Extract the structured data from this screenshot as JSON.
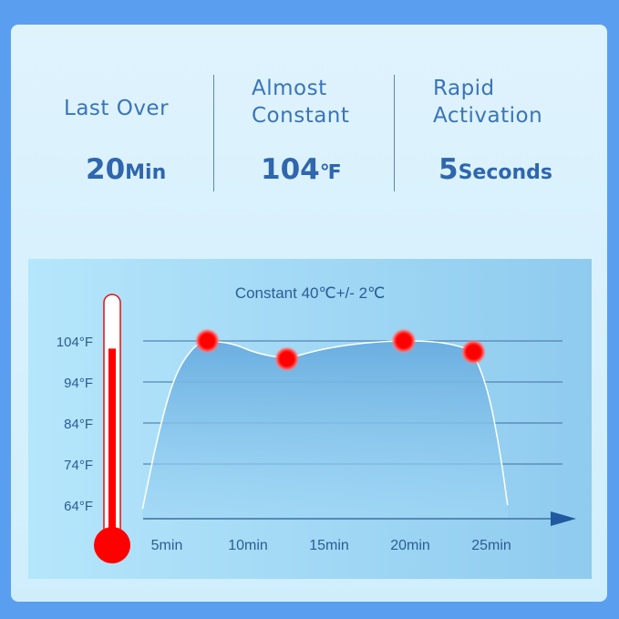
{
  "stats": [
    {
      "label_lines": [
        "Last Over"
      ],
      "value": "20",
      "unit": "Min"
    },
    {
      "label_lines": [
        "Almost",
        "Constant"
      ],
      "value": "104",
      "unit": "℉"
    },
    {
      "label_lines": [
        "Rapid",
        "Activation"
      ],
      "value": "5",
      "unit": "Seconds"
    }
  ],
  "chart_data": {
    "type": "area",
    "title": "Constant 40℃+/- 2℃",
    "xlabel": "",
    "ylabel": "",
    "x_ticks": [
      "5min",
      "10min",
      "15min",
      "20min",
      "25min"
    ],
    "x_tick_values": [
      5,
      10,
      15,
      20,
      25
    ],
    "y_ticks": [
      "104°F",
      "94°F",
      "84°F",
      "74°F",
      "64°F"
    ],
    "y_tick_values": [
      104,
      94,
      84,
      74,
      64
    ],
    "grid": true,
    "curve": [
      [
        3.5,
        63
      ],
      [
        4.5,
        82
      ],
      [
        5.5,
        96
      ],
      [
        6.7,
        103
      ],
      [
        7.5,
        104
      ],
      [
        9,
        103.5
      ],
      [
        10.5,
        101
      ],
      [
        12.4,
        99.6
      ],
      [
        14,
        101.5
      ],
      [
        16,
        103
      ],
      [
        18.5,
        104
      ],
      [
        21.5,
        104
      ],
      [
        23.3,
        102.5
      ],
      [
        23.9,
        101.3
      ],
      [
        24.8,
        92
      ],
      [
        25.5,
        78
      ],
      [
        26,
        64
      ]
    ],
    "highlight_points": [
      [
        7.5,
        104
      ],
      [
        12.4,
        99.6
      ],
      [
        19.6,
        104
      ],
      [
        23.9,
        101.3
      ]
    ],
    "colors": {
      "fill": "#6aaee0",
      "line": "#ffffff",
      "point": "#ff0000",
      "grid": "#3f6f9e",
      "text": "#2c5d94",
      "thermometer": "#ff0000"
    },
    "thermometer_level_fraction": 0.8
  }
}
